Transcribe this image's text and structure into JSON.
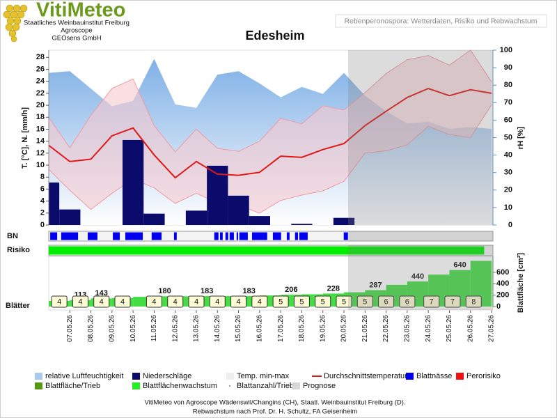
{
  "header": {
    "logo": "VitiMeteo",
    "org_lines": [
      "Staatliches Weinbauinstitut Freiburg",
      "Agroscope",
      "GEOsens GmbH"
    ],
    "subtitle": "Rebenperonospora: Wetterdaten, Risiko und Rebwachstum"
  },
  "chart_data": [
    {
      "type": "combo",
      "title": "Edesheim",
      "ylabel": "T. [°C], N. [mm/h]",
      "y2label": "rH [%]",
      "categories": [
        null,
        "07.05.26",
        "08.05.26",
        "09.05.26",
        "10.05.26",
        "11.05.26",
        "12.05.26",
        "13.05.26",
        "14.05.26",
        "15.05.26",
        "16.05.26",
        "17.05.26",
        "18.05.26",
        "19.05.26",
        "20.05.26",
        "21.05.26",
        "22.05.26",
        "23.05.26",
        "24.05.26",
        "25.05.26",
        "26.05.26",
        "27.05.26"
      ],
      "ylim": [
        0,
        29.2
      ],
      "yticks": [
        0,
        2,
        4,
        6,
        8,
        10,
        12,
        14,
        16,
        18,
        20,
        22,
        24,
        26,
        28
      ],
      "y2lim": [
        0,
        100
      ],
      "y2ticks": [
        0,
        10,
        20,
        30,
        40,
        50,
        60,
        70,
        80,
        90,
        100
      ],
      "forecast_from": 14.2,
      "series": [
        {
          "kind": "area",
          "axis": "y2",
          "color": "#7fb0e6",
          "values": [
            87,
            88,
            78,
            68,
            71,
            95,
            69,
            67,
            86,
            88,
            81,
            73,
            79,
            75,
            87,
            74,
            65,
            58,
            59,
            55,
            56,
            55
          ]
        },
        {
          "kind": "range",
          "color": "#f7c9cf",
          "line_color": "#f29aa4",
          "low": [
            9.3,
            5.8,
            2.6,
            5.3,
            7.7,
            6.2,
            3.6,
            5.3,
            3.7,
            3.3,
            2.0,
            4.1,
            5.0,
            5.7,
            7.3,
            12.0,
            12.4,
            13.4,
            16.5,
            15.1,
            14.6,
            20.1
          ],
          "high": [
            18.0,
            12.9,
            18.3,
            22.8,
            24.4,
            16.6,
            12.2,
            16.0,
            12.8,
            12.3,
            14.0,
            17.8,
            16.9,
            19.9,
            19.2,
            22.1,
            25.3,
            27.6,
            28.3,
            26.7,
            29.2,
            23.9
          ]
        },
        {
          "kind": "bar",
          "color": "#0b0b6b",
          "values": [
            7.1,
            2.6,
            0,
            0,
            14.2,
            1.9,
            0,
            2.4,
            9.9,
            4.9,
            1.5,
            0,
            0.2,
            0,
            1.2,
            null,
            null,
            null,
            null,
            null,
            null,
            null
          ]
        },
        {
          "kind": "line",
          "color": "#e01818",
          "values": [
            13.3,
            10.6,
            11.0,
            14.9,
            16.2,
            11.7,
            7.9,
            10.6,
            8.5,
            8.3,
            8.8,
            11.5,
            11.3,
            12.6,
            13.6,
            16.6,
            19.0,
            21.3,
            22.8,
            21.6,
            22.6,
            22.0
          ]
        }
      ]
    },
    {
      "type": "intervals",
      "label": "BN",
      "color": "#0000ee",
      "intervals": [
        [
          0.07,
          0.4
        ],
        [
          0.59,
          1.39
        ],
        [
          1.85,
          2.31
        ],
        [
          3.04,
          3.37
        ],
        [
          3.63,
          4.46
        ],
        [
          4.88,
          5.35
        ],
        [
          5.94,
          6.07
        ],
        [
          7.85,
          8.05
        ],
        [
          8.12,
          8.25
        ],
        [
          8.38,
          8.51
        ],
        [
          8.58,
          8.78
        ],
        [
          8.91,
          8.98
        ],
        [
          9.04,
          9.44
        ],
        [
          9.64,
          10.36
        ],
        [
          10.63,
          11.02
        ],
        [
          11.29,
          11.42
        ],
        [
          11.68,
          11.82
        ],
        [
          11.88,
          12.28
        ],
        [
          13.99,
          14.19
        ]
      ]
    },
    {
      "type": "intervals",
      "label": "Risiko",
      "color": "#00ee00",
      "intervals": [
        [
          0.0,
          20.65
        ]
      ]
    },
    {
      "type": "step",
      "label": "Blätter",
      "ylabel": "Blattfläche [cm²]",
      "color": "#44dd44",
      "ylim": [
        0,
        880
      ],
      "yticks": [
        0,
        200,
        400,
        600
      ],
      "values": [
        100,
        113,
        143,
        150,
        170,
        180,
        180,
        183,
        183,
        183,
        195,
        206,
        215,
        228,
        250,
        287,
        380,
        440,
        560,
        640,
        800
      ],
      "data_labels": [
        null,
        113,
        143,
        null,
        null,
        180,
        null,
        183,
        null,
        183,
        null,
        206,
        null,
        228,
        null,
        287,
        null,
        440,
        null,
        640,
        null
      ],
      "leaf_x": [
        0.5,
        1.5,
        2.5,
        3.5,
        5,
        6,
        7,
        8,
        9,
        10,
        11,
        12,
        13,
        14,
        15,
        16,
        17,
        18.15,
        19.15,
        20.15
      ],
      "leaf_counts": [
        4,
        4,
        4,
        4,
        4,
        4,
        4,
        4,
        4,
        4,
        5,
        5,
        5,
        5,
        5,
        6,
        6,
        7,
        7,
        8
      ]
    }
  ],
  "legend": [
    {
      "name": "relative Luftfeuchtigkeit",
      "color": "#a9c9ee",
      "kind": "box"
    },
    {
      "name": "Niederschläge",
      "color": "#0b0b6b",
      "kind": "box"
    },
    {
      "name": "Temp. min-max",
      "color": "#eeeeee",
      "kind": "box"
    },
    {
      "name": "Durchschnittstemperatur",
      "color": "#e01818",
      "kind": "line"
    },
    {
      "name": "Blattnässe",
      "color": "#0000ee",
      "kind": "box"
    },
    {
      "name": "Perorisiko",
      "color": "#ee1111",
      "kind": "box"
    },
    {
      "name": "Blattfläche/Trieb",
      "color": "#559911",
      "kind": "box"
    },
    {
      "name": "Blattflächenwachstum",
      "color": "#22ee22",
      "kind": "box"
    },
    {
      "name": "Blattanzahl/Trieb",
      "color": "#777777",
      "kind": "dot"
    },
    {
      "name": "Prognose",
      "color": "#d8d8d8",
      "kind": "box"
    }
  ],
  "footer": [
    "VitiMeteo von Agroscope Wädenswil/Changins (CH), Staatl. Weinbauinstitut Freiburg (D).",
    "Rebwachstum nach Prof. Dr. H. Schultz, FA Geisenheim"
  ]
}
